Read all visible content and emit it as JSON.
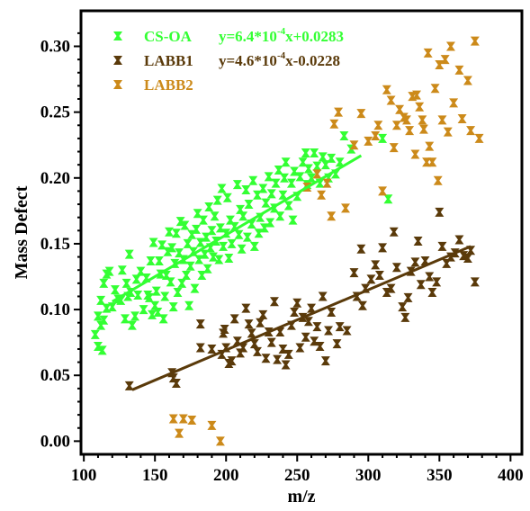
{
  "chart_data": {
    "type": "scatter",
    "title": "",
    "xlabel": "m/z",
    "ylabel": "Mass Defect",
    "xlim": [
      98,
      408
    ],
    "ylim": [
      -0.01,
      0.327
    ],
    "xticks": [
      "100",
      "150",
      "200",
      "250",
      "300",
      "350",
      "400"
    ],
    "yticks": [
      "0.00",
      "0.05",
      "0.10",
      "0.15",
      "0.20",
      "0.25",
      "0.30"
    ],
    "grid": false,
    "legend_position": "top-left",
    "series": [
      {
        "name": "CS-OA",
        "color": "#33ff33",
        "marker": "bowtie",
        "equation": {
          "prefix": "y=6.4*10",
          "exponent": "-4",
          "suffix": "x+0.0283"
        },
        "fit": {
          "x": [
            120,
            295
          ],
          "y": [
            0.106,
            0.217
          ]
        },
        "points": [
          [
            108,
            0.081
          ],
          [
            110,
            0.095
          ],
          [
            110,
            0.072
          ],
          [
            112,
            0.088
          ],
          [
            112,
            0.107
          ],
          [
            113,
            0.069
          ],
          [
            114,
            0.092
          ],
          [
            114,
            0.12
          ],
          [
            116,
            0.101
          ],
          [
            116,
            0.127
          ],
          [
            118,
            0.129
          ],
          [
            120,
            0.102
          ],
          [
            122,
            0.115
          ],
          [
            124,
            0.108
          ],
          [
            126,
            0.107
          ],
          [
            127,
            0.13
          ],
          [
            129,
            0.093
          ],
          [
            130,
            0.12
          ],
          [
            131,
            0.11
          ],
          [
            132,
            0.142
          ],
          [
            133,
            0.113
          ],
          [
            134,
            0.088
          ],
          [
            136,
            0.095
          ],
          [
            137,
            0.123
          ],
          [
            138,
            0.111
          ],
          [
            140,
            0.129
          ],
          [
            142,
            0.1
          ],
          [
            144,
            0.124
          ],
          [
            145,
            0.111
          ],
          [
            146,
            0.109
          ],
          [
            147,
            0.137
          ],
          [
            148,
            0.096
          ],
          [
            149,
            0.151
          ],
          [
            150,
            0.103
          ],
          [
            151,
            0.114
          ],
          [
            152,
            0.098
          ],
          [
            153,
            0.137
          ],
          [
            154,
            0.127
          ],
          [
            155,
            0.149
          ],
          [
            156,
            0.093
          ],
          [
            157,
            0.11
          ],
          [
            158,
            0.126
          ],
          [
            159,
            0.144
          ],
          [
            160,
            0.159
          ],
          [
            161,
            0.121
          ],
          [
            162,
            0.147
          ],
          [
            163,
            0.102
          ],
          [
            164,
            0.135
          ],
          [
            165,
            0.158
          ],
          [
            166,
            0.113
          ],
          [
            167,
            0.143
          ],
          [
            168,
            0.167
          ],
          [
            169,
            0.12
          ],
          [
            170,
            0.138
          ],
          [
            171,
            0.164
          ],
          [
            172,
            0.126
          ],
          [
            173,
            0.15
          ],
          [
            174,
            0.103
          ],
          [
            175,
            0.133
          ],
          [
            176,
            0.157
          ],
          [
            177,
            0.144
          ],
          [
            178,
            0.116
          ],
          [
            179,
            0.161
          ],
          [
            180,
            0.173
          ],
          [
            181,
            0.138
          ],
          [
            182,
            0.151
          ],
          [
            183,
            0.126
          ],
          [
            184,
            0.168
          ],
          [
            185,
            0.142
          ],
          [
            186,
            0.155
          ],
          [
            187,
            0.131
          ],
          [
            188,
            0.178
          ],
          [
            189,
            0.147
          ],
          [
            190,
            0.16
          ],
          [
            191,
            0.14
          ],
          [
            192,
            0.171
          ],
          [
            193,
            0.152
          ],
          [
            194,
            0.183
          ],
          [
            195,
            0.138
          ],
          [
            196,
            0.162
          ],
          [
            197,
            0.192
          ],
          [
            198,
            0.148
          ],
          [
            200,
            0.158
          ],
          [
            201,
            0.185
          ],
          [
            202,
            0.139
          ],
          [
            203,
            0.168
          ],
          [
            204,
            0.15
          ],
          [
            206,
            0.163
          ],
          [
            208,
            0.195
          ],
          [
            209,
            0.157
          ],
          [
            210,
            0.176
          ],
          [
            211,
            0.146
          ],
          [
            212,
            0.171
          ],
          [
            214,
            0.191
          ],
          [
            215,
            0.155
          ],
          [
            216,
            0.18
          ],
          [
            218,
            0.165
          ],
          [
            219,
            0.198
          ],
          [
            220,
            0.148
          ],
          [
            222,
            0.187
          ],
          [
            223,
            0.158
          ],
          [
            224,
            0.17
          ],
          [
            226,
            0.192
          ],
          [
            227,
            0.162
          ],
          [
            228,
            0.181
          ],
          [
            230,
            0.201
          ],
          [
            231,
            0.166
          ],
          [
            232,
            0.188
          ],
          [
            234,
            0.177
          ],
          [
            235,
            0.196
          ],
          [
            237,
            0.206
          ],
          [
            238,
            0.171
          ],
          [
            240,
            0.187
          ],
          [
            241,
            0.2
          ],
          [
            242,
            0.212
          ],
          [
            244,
            0.179
          ],
          [
            246,
            0.196
          ],
          [
            247,
            0.168
          ],
          [
            248,
            0.205
          ],
          [
            250,
            0.186
          ],
          [
            252,
            0.201
          ],
          [
            254,
            0.212
          ],
          [
            256,
            0.219
          ],
          [
            257,
            0.195
          ],
          [
            258,
            0.207
          ],
          [
            260,
            0.2
          ],
          [
            262,
            0.219
          ],
          [
            264,
            0.209
          ],
          [
            266,
            0.196
          ],
          [
            268,
            0.216
          ],
          [
            270,
            0.21
          ],
          [
            272,
            0.2
          ],
          [
            274,
            0.215
          ],
          [
            277,
            0.203
          ],
          [
            280,
            0.212
          ],
          [
            283,
            0.232
          ],
          [
            288,
            0.222
          ],
          [
            310,
            0.23
          ],
          [
            314,
            0.184
          ]
        ]
      },
      {
        "name": "LABB1",
        "color": "#5a3a0a",
        "marker": "bowtie",
        "equation": {
          "prefix": "y=4.6*10",
          "exponent": "-4",
          "suffix": "x-0.0228"
        },
        "fit": {
          "x": [
            134,
            372
          ],
          "y": [
            0.039,
            0.148
          ]
        },
        "points": [
          [
            132,
            0.042
          ],
          [
            162,
            0.052
          ],
          [
            163,
            0.048
          ],
          [
            165,
            0.044
          ],
          [
            182,
            0.089
          ],
          [
            182,
            0.071
          ],
          [
            190,
            0.07
          ],
          [
            197,
            0.066
          ],
          [
            198,
            0.082
          ],
          [
            199,
            0.085
          ],
          [
            200,
            0.071
          ],
          [
            202,
            0.059
          ],
          [
            204,
            0.061
          ],
          [
            206,
            0.093
          ],
          [
            208,
            0.076
          ],
          [
            210,
            0.067
          ],
          [
            212,
            0.071
          ],
          [
            214,
            0.101
          ],
          [
            216,
            0.089
          ],
          [
            218,
            0.082
          ],
          [
            220,
            0.074
          ],
          [
            222,
            0.068
          ],
          [
            224,
            0.09
          ],
          [
            226,
            0.096
          ],
          [
            228,
            0.063
          ],
          [
            230,
            0.083
          ],
          [
            232,
            0.075
          ],
          [
            234,
            0.106
          ],
          [
            236,
            0.062
          ],
          [
            238,
            0.083
          ],
          [
            240,
            0.07
          ],
          [
            242,
            0.058
          ],
          [
            244,
            0.066
          ],
          [
            246,
            0.088
          ],
          [
            248,
            0.098
          ],
          [
            250,
            0.105
          ],
          [
            252,
            0.071
          ],
          [
            254,
            0.094
          ],
          [
            256,
            0.079
          ],
          [
            258,
            0.091
          ],
          [
            260,
            0.101
          ],
          [
            262,
            0.076
          ],
          [
            264,
            0.087
          ],
          [
            266,
            0.072
          ],
          [
            268,
            0.11
          ],
          [
            270,
            0.061
          ],
          [
            272,
            0.084
          ],
          [
            274,
            0.098
          ],
          [
            278,
            0.074
          ],
          [
            280,
            0.087
          ],
          [
            285,
            0.084
          ],
          [
            290,
            0.128
          ],
          [
            292,
            0.11
          ],
          [
            295,
            0.146
          ],
          [
            296,
            0.103
          ],
          [
            298,
            0.116
          ],
          [
            302,
            0.123
          ],
          [
            305,
            0.134
          ],
          [
            308,
            0.126
          ],
          [
            310,
            0.147
          ],
          [
            313,
            0.113
          ],
          [
            316,
            0.116
          ],
          [
            318,
            0.159
          ],
          [
            320,
            0.132
          ],
          [
            324,
            0.102
          ],
          [
            326,
            0.094
          ],
          [
            328,
            0.109
          ],
          [
            330,
            0.129
          ],
          [
            333,
            0.136
          ],
          [
            335,
            0.152
          ],
          [
            337,
            0.119
          ],
          [
            340,
            0.137
          ],
          [
            343,
            0.125
          ],
          [
            345,
            0.113
          ],
          [
            348,
            0.121
          ],
          [
            350,
            0.174
          ],
          [
            352,
            0.148
          ],
          [
            355,
            0.135
          ],
          [
            358,
            0.14
          ],
          [
            361,
            0.143
          ],
          [
            364,
            0.153
          ],
          [
            367,
            0.141
          ],
          [
            370,
            0.139
          ],
          [
            372,
            0.145
          ],
          [
            375,
            0.121
          ]
        ]
      },
      {
        "name": "LABB2",
        "color": "#cc8a1a",
        "marker": "bowtie",
        "points": [
          [
            163,
            0.017
          ],
          [
            167,
            0.006
          ],
          [
            170,
            0.017
          ],
          [
            176,
            0.016
          ],
          [
            190,
            0.012
          ],
          [
            196,
            0.0
          ],
          [
            257,
            0.193
          ],
          [
            264,
            0.203
          ],
          [
            267,
            0.187
          ],
          [
            271,
            0.196
          ],
          [
            274,
            0.171
          ],
          [
            276,
            0.241
          ],
          [
            279,
            0.25
          ],
          [
            284,
            0.177
          ],
          [
            290,
            0.225
          ],
          [
            295,
            0.249
          ],
          [
            300,
            0.228
          ],
          [
            305,
            0.232
          ],
          [
            307,
            0.24
          ],
          [
            310,
            0.19
          ],
          [
            313,
            0.267
          ],
          [
            316,
            0.259
          ],
          [
            318,
            0.223
          ],
          [
            320,
            0.24
          ],
          [
            322,
            0.252
          ],
          [
            325,
            0.246
          ],
          [
            327,
            0.244
          ],
          [
            329,
            0.236
          ],
          [
            331,
            0.262
          ],
          [
            333,
            0.218
          ],
          [
            334,
            0.263
          ],
          [
            336,
            0.254
          ],
          [
            338,
            0.244
          ],
          [
            339,
            0.237
          ],
          [
            341,
            0.212
          ],
          [
            342,
            0.295
          ],
          [
            343,
            0.224
          ],
          [
            345,
            0.212
          ],
          [
            347,
            0.268
          ],
          [
            349,
            0.198
          ],
          [
            350,
            0.286
          ],
          [
            352,
            0.244
          ],
          [
            354,
            0.29
          ],
          [
            356,
            0.235
          ],
          [
            358,
            0.3
          ],
          [
            360,
            0.257
          ],
          [
            364,
            0.282
          ],
          [
            366,
            0.245
          ],
          [
            370,
            0.274
          ],
          [
            372,
            0.236
          ],
          [
            375,
            0.304
          ],
          [
            378,
            0.23
          ]
        ]
      }
    ]
  }
}
